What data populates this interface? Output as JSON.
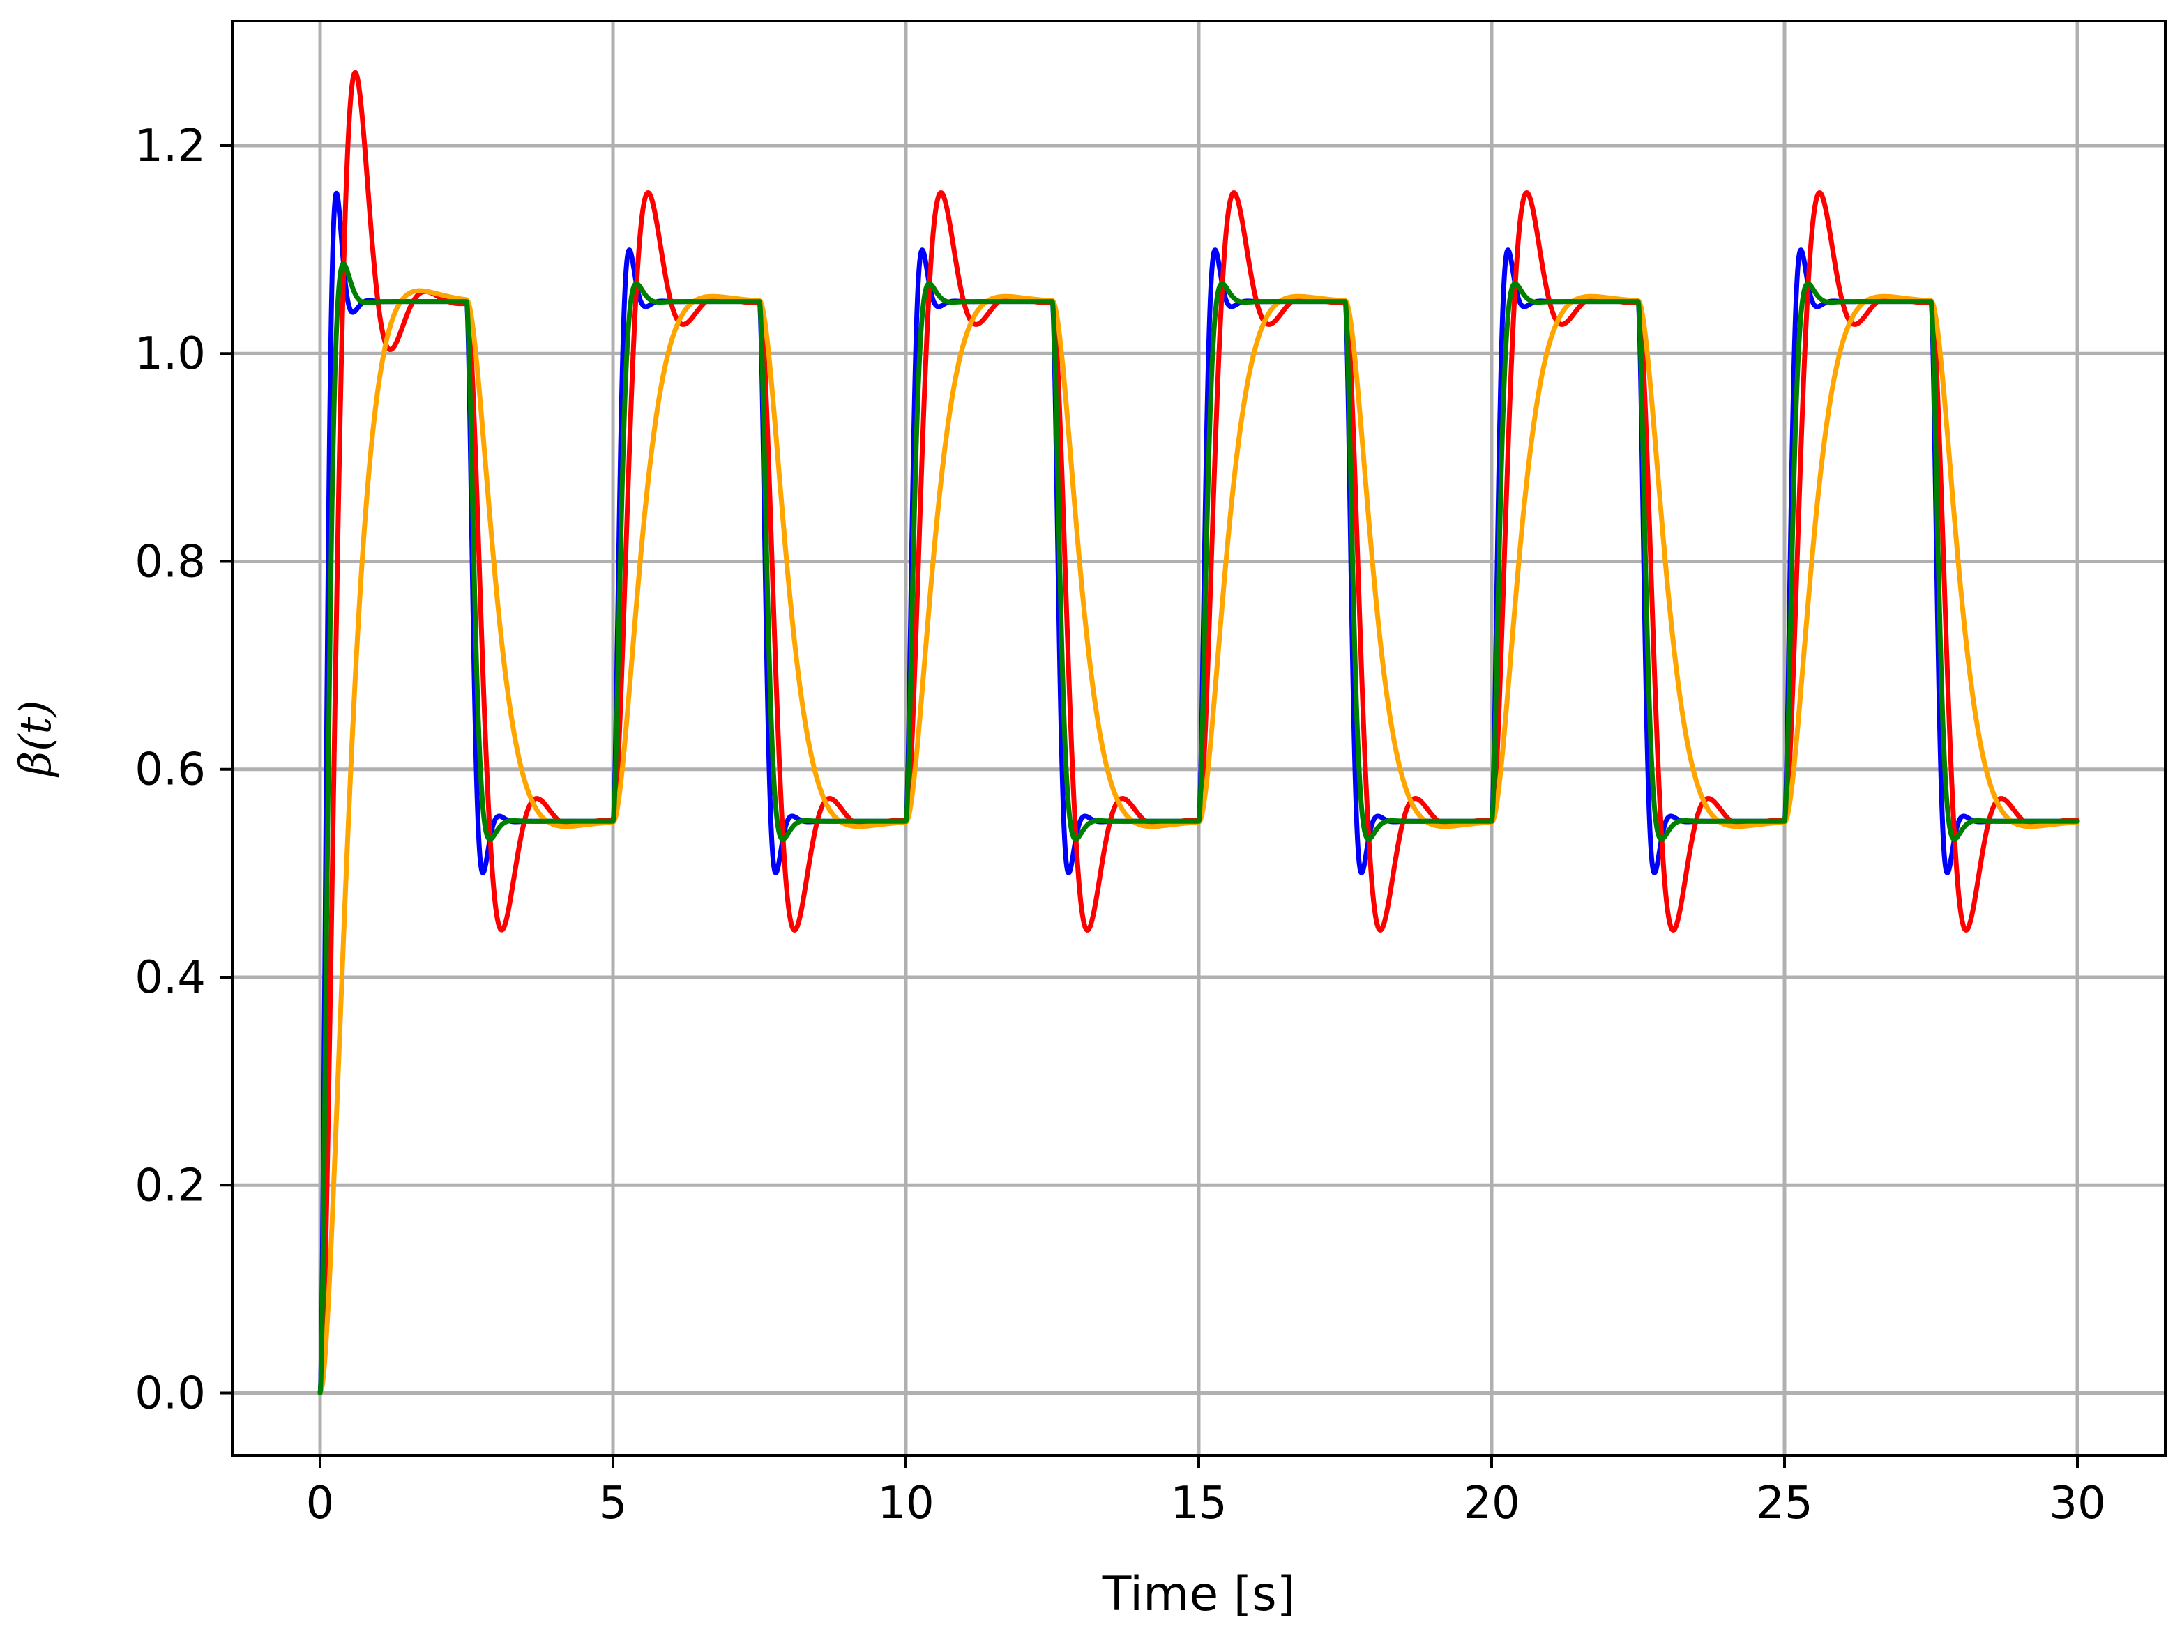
{
  "chart_data": {
    "type": "line",
    "title": "",
    "xlabel": "Time [s]",
    "ylabel": "β(t)",
    "xlim": [
      -1.5,
      31.5
    ],
    "ylim": [
      -0.06,
      1.32
    ],
    "xticks": [
      0,
      5,
      10,
      15,
      20,
      25,
      30
    ],
    "yticks": [
      0.0,
      0.2,
      0.4,
      0.6,
      0.8,
      1.0,
      1.2
    ],
    "ytick_labels": [
      "0.0",
      "0.2",
      "0.4",
      "0.6",
      "0.8",
      "1.0",
      "1.2"
    ],
    "grid": true,
    "legend": "none",
    "input_signal": {
      "kind": "square-wave",
      "high": 1.05,
      "low": 0.55,
      "period_s": 5,
      "high_duration_s": 2.5,
      "start_s": 0,
      "end_s": 30
    },
    "series": [
      {
        "color": "#0000ff",
        "overshoot": 0.1,
        "peak_time_s": 0.28,
        "settle_tau_s": 0.12,
        "first_peak": 1.15,
        "first_undershoot": 1.04
      },
      {
        "color": "#ff0000",
        "overshoot": 0.21,
        "peak_time_s": 0.6,
        "settle_tau_s": 0.5,
        "first_peak": 1.27,
        "first_undershoot": 1.0
      },
      {
        "color": "#ffa500",
        "overshoot": 0.01,
        "peak_time_s": 1.7,
        "settle_tau_s": 0.4,
        "first_peak": 1.06,
        "first_undershoot": 1.05
      },
      {
        "color": "#008000",
        "overshoot": 0.035,
        "peak_time_s": 0.4,
        "settle_tau_s": 0.18,
        "first_peak": 1.085,
        "first_undershoot": 1.05
      }
    ],
    "samples_per_second": 200
  }
}
